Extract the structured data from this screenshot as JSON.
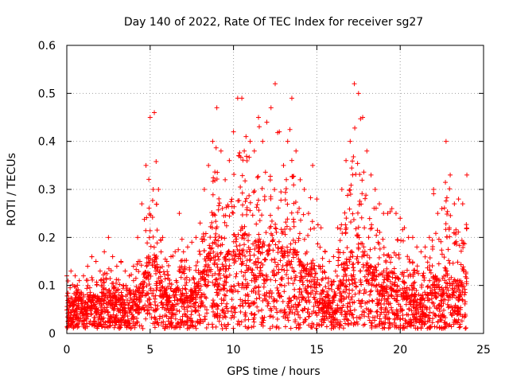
{
  "chart_data": {
    "type": "scatter",
    "title": "Day 140 of 2022, Rate Of TEC Index for receiver sg27",
    "xlabel": "GPS time / hours",
    "ylabel": "ROTI / TECUs",
    "xlim": [
      0,
      25
    ],
    "ylim": [
      0,
      0.6
    ],
    "xticks": [
      "0",
      "5",
      "10",
      "15",
      "20",
      "25"
    ],
    "yticks": [
      "0",
      "0.1",
      "0.2",
      "0.3",
      "0.4",
      "0.5",
      "0.6"
    ],
    "grid": true,
    "marker": "+",
    "color": "#ff0000",
    "series": [
      {
        "x": [
          0.0,
          0.25,
          0.5,
          0.75,
          1.0,
          1.25,
          1.5,
          1.75,
          2.0,
          2.25,
          2.5,
          2.75,
          3.0,
          3.25,
          3.5,
          3.75,
          4.0,
          4.25,
          4.5,
          4.75,
          5.0,
          5.25,
          5.5,
          5.75,
          6.0,
          6.25,
          6.5,
          6.75,
          7.0,
          7.25,
          7.5,
          7.75,
          8.0,
          8.25,
          8.5,
          8.75,
          9.0,
          9.25,
          9.5,
          9.75,
          10.0,
          10.25,
          10.5,
          10.75,
          11.0,
          11.25,
          11.5,
          11.75,
          12.0,
          12.25,
          12.5,
          12.75,
          13.0,
          13.25,
          13.5,
          13.75,
          14.0,
          14.25,
          14.5,
          14.75,
          15.0,
          15.25,
          15.5,
          15.75,
          16.0,
          16.25,
          16.5,
          16.75,
          17.0,
          17.25,
          17.5,
          17.75,
          18.0,
          18.25,
          18.5,
          18.75,
          19.0,
          19.25,
          19.5,
          19.75,
          20.0,
          20.25,
          20.5,
          20.75,
          21.0,
          21.25,
          21.5,
          21.75,
          22.0,
          22.25,
          22.5,
          22.75,
          23.0,
          23.25,
          23.5,
          23.75,
          24.0
        ],
        "y_max": [
          0.12,
          0.13,
          0.12,
          0.11,
          0.12,
          0.14,
          0.16,
          0.15,
          0.13,
          0.17,
          0.2,
          0.16,
          0.14,
          0.15,
          0.13,
          0.12,
          0.14,
          0.2,
          0.27,
          0.35,
          0.45,
          0.46,
          0.3,
          0.2,
          0.15,
          0.16,
          0.17,
          0.25,
          0.17,
          0.18,
          0.19,
          0.2,
          0.23,
          0.3,
          0.35,
          0.4,
          0.47,
          0.38,
          0.32,
          0.36,
          0.42,
          0.49,
          0.49,
          0.41,
          0.4,
          0.38,
          0.45,
          0.4,
          0.44,
          0.47,
          0.52,
          0.42,
          0.35,
          0.4,
          0.49,
          0.38,
          0.32,
          0.3,
          0.25,
          0.35,
          0.28,
          0.22,
          0.17,
          0.15,
          0.16,
          0.22,
          0.3,
          0.36,
          0.4,
          0.52,
          0.5,
          0.45,
          0.38,
          0.33,
          0.3,
          0.27,
          0.25,
          0.25,
          0.26,
          0.25,
          0.24,
          0.22,
          0.2,
          0.2,
          0.18,
          0.17,
          0.18,
          0.2,
          0.3,
          0.25,
          0.26,
          0.4,
          0.33,
          0.27,
          0.28,
          0.27,
          0.33
        ],
        "y_typical": [
          0.04,
          0.05,
          0.05,
          0.05,
          0.04,
          0.05,
          0.05,
          0.05,
          0.05,
          0.06,
          0.06,
          0.05,
          0.05,
          0.05,
          0.04,
          0.04,
          0.05,
          0.06,
          0.07,
          0.09,
          0.11,
          0.11,
          0.09,
          0.07,
          0.05,
          0.05,
          0.06,
          0.06,
          0.05,
          0.05,
          0.06,
          0.07,
          0.08,
          0.1,
          0.11,
          0.12,
          0.14,
          0.12,
          0.11,
          0.11,
          0.13,
          0.14,
          0.14,
          0.13,
          0.12,
          0.12,
          0.13,
          0.12,
          0.13,
          0.14,
          0.14,
          0.13,
          0.11,
          0.12,
          0.13,
          0.11,
          0.1,
          0.09,
          0.08,
          0.1,
          0.08,
          0.06,
          0.05,
          0.05,
          0.05,
          0.06,
          0.08,
          0.1,
          0.11,
          0.13,
          0.13,
          0.12,
          0.1,
          0.09,
          0.09,
          0.08,
          0.08,
          0.08,
          0.08,
          0.08,
          0.07,
          0.07,
          0.06,
          0.06,
          0.06,
          0.05,
          0.05,
          0.06,
          0.08,
          0.07,
          0.07,
          0.09,
          0.08,
          0.07,
          0.07,
          0.07,
          0.08
        ],
        "y_min": 0.01
      }
    ]
  }
}
